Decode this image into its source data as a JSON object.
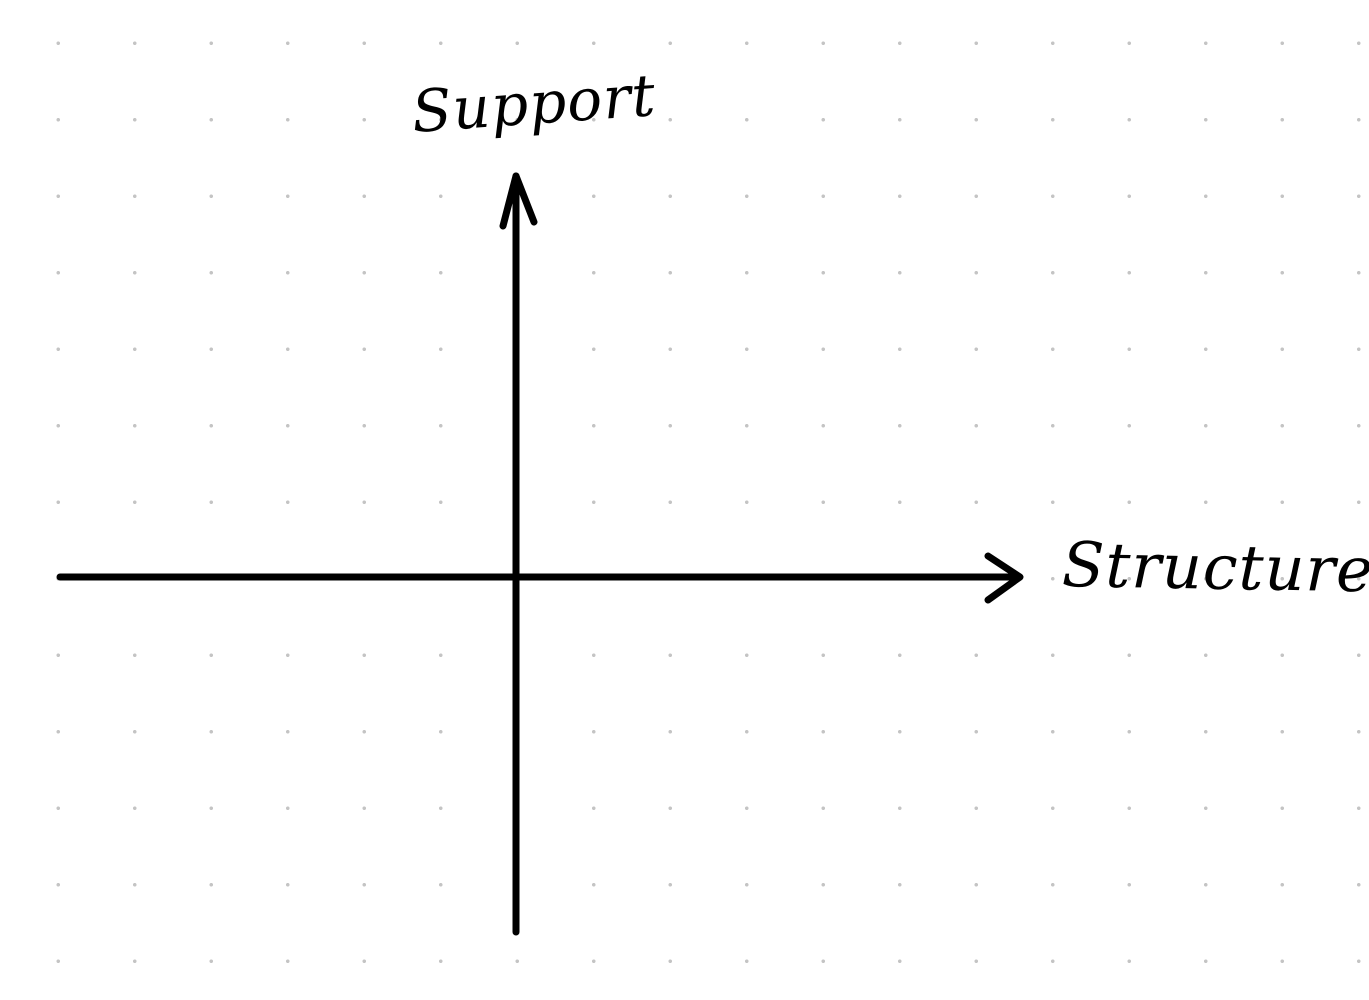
{
  "diagram": {
    "type": "quadrant-axes",
    "x_axis_label": "Structure",
    "y_axis_label": "Support",
    "ink_color": "#000000",
    "grid_dot_color": "#c4c4c4",
    "background_color": "#ffffff"
  }
}
